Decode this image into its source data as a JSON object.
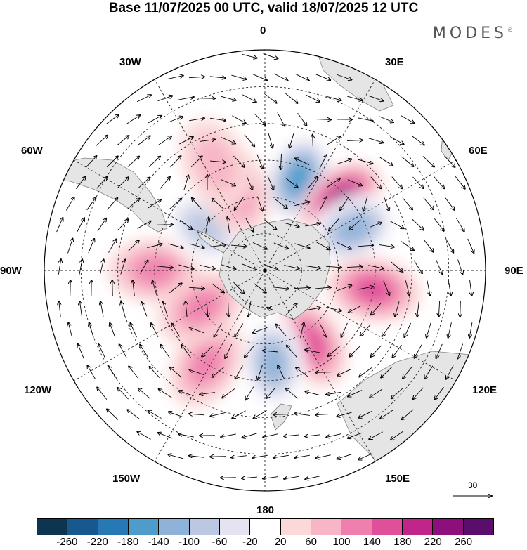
{
  "title": "Base 11/07/2025 00 UTC, valid 18/07/2025 12 UTC",
  "brand": "MODES",
  "brand_mark": "©",
  "longitude_labels": {
    "lon_0": "0",
    "lon_30e": "30E",
    "lon_60e": "60E",
    "lon_90e": "90E",
    "lon_120e": "120E",
    "lon_150e": "150E",
    "lon_180": "180",
    "lon_150w": "150W",
    "lon_120w": "120W",
    "lon_90w": "90W",
    "lon_60w": "60W",
    "lon_30w": "30W"
  },
  "reference_vector": {
    "value": "30"
  },
  "colorbar": {
    "colors": [
      "#0d3550",
      "#17588e",
      "#2779b6",
      "#4d9ccc",
      "#8fb3d8",
      "#bcc7e2",
      "#e3e3f1",
      "#ffffff",
      "#fbd9d9",
      "#f7b5c5",
      "#ef7fae",
      "#e04f9a",
      "#c0258a",
      "#8c0f7c",
      "#5a0d6a"
    ],
    "ticks": [
      "-260",
      "-220",
      "-180",
      "-140",
      "-100",
      "-60",
      "-20",
      "20",
      "60",
      "100",
      "140",
      "180",
      "220",
      "260"
    ]
  },
  "anomaly_field": [
    {
      "lat": -50,
      "lon": 20,
      "value": -180
    },
    {
      "lat": -48,
      "lon": 48,
      "value": 200
    },
    {
      "lat": -50,
      "lon": 65,
      "value": -150
    },
    {
      "lat": -45,
      "lon": 100,
      "value": 120
    },
    {
      "lat": -55,
      "lon": 148,
      "value": 150
    },
    {
      "lat": -52,
      "lon": 175,
      "value": -140
    },
    {
      "lat": -45,
      "lon": -148,
      "value": 90
    },
    {
      "lat": -45,
      "lon": -90,
      "value": 80
    },
    {
      "lat": -60,
      "lon": -55,
      "value": -80
    },
    {
      "lat": -55,
      "lon": -20,
      "value": 100
    },
    {
      "lat": -42,
      "lon": -25,
      "value": 60
    },
    {
      "lat": -60,
      "lon": -120,
      "value": 90
    }
  ]
}
